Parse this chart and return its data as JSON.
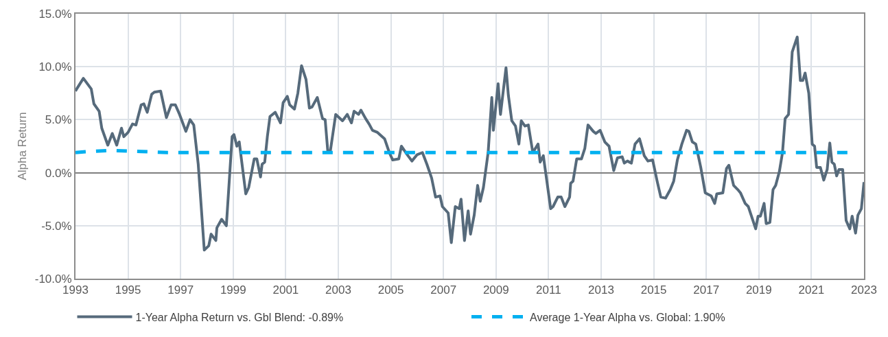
{
  "chart_data": {
    "type": "line",
    "ylabel": "Alpha Return",
    "xlim": [
      1993,
      2023
    ],
    "xticks": [
      1993,
      1995,
      1997,
      1999,
      2001,
      2003,
      2005,
      2007,
      2009,
      2011,
      2013,
      2015,
      2017,
      2019,
      2021,
      2023
    ],
    "ylim": [
      -10,
      15
    ],
    "yticks": [
      {
        "value": -10,
        "label": "-10.0%"
      },
      {
        "value": -5,
        "label": "-5.0%"
      },
      {
        "value": 0,
        "label": "0.0%"
      },
      {
        "value": 5,
        "label": "5.0%"
      },
      {
        "value": 10,
        "label": "10.0%"
      },
      {
        "value": 15,
        "label": "15.0%"
      }
    ],
    "grid": true,
    "legend": "bottom",
    "marker": "none",
    "series": [
      {
        "name": "1-Year Alpha Return vs. Gbl Blend: -0.89%",
        "color": "#566a7b",
        "line_style": "solid",
        "x": [
          1993.0,
          1993.07,
          1993.3,
          1993.6,
          1993.7,
          1993.9,
          1994.0,
          1994.23,
          1994.4,
          1994.57,
          1994.75,
          1994.84,
          1995.0,
          1995.17,
          1995.3,
          1995.5,
          1995.6,
          1995.73,
          1995.9,
          1996.0,
          1996.24,
          1996.46,
          1996.64,
          1996.8,
          1996.96,
          1997.2,
          1997.36,
          1997.5,
          1997.67,
          1997.9,
          1998.07,
          1998.16,
          1998.34,
          1998.38,
          1998.56,
          1998.74,
          1998.96,
          1999.03,
          1999.14,
          1999.23,
          1999.48,
          1999.59,
          1999.8,
          1999.9,
          2000.04,
          2000.1,
          2000.2,
          2000.3,
          2000.4,
          2000.6,
          2000.8,
          2000.9,
          2001.06,
          2001.15,
          2001.33,
          2001.46,
          2001.6,
          2001.77,
          2001.9,
          2002.0,
          2002.2,
          2002.27,
          2002.4,
          2002.5,
          2002.6,
          2002.7,
          2002.9,
          2003.16,
          2003.34,
          2003.5,
          2003.6,
          2003.77,
          2003.86,
          2004.04,
          2004.17,
          2004.3,
          2004.49,
          2004.76,
          2004.94,
          2005.07,
          2005.3,
          2005.4,
          2005.65,
          2005.8,
          2006.0,
          2006.2,
          2006.37,
          2006.55,
          2006.7,
          2006.87,
          2006.96,
          2007.18,
          2007.3,
          2007.45,
          2007.6,
          2007.67,
          2007.8,
          2007.94,
          2008.03,
          2008.17,
          2008.3,
          2008.4,
          2008.52,
          2008.7,
          2008.84,
          2008.9,
          2009.08,
          2009.17,
          2009.38,
          2009.47,
          2009.6,
          2009.74,
          2009.87,
          2009.96,
          2010.1,
          2010.23,
          2010.4,
          2010.6,
          2010.68,
          2010.8,
          2011.08,
          2011.17,
          2011.35,
          2011.48,
          2011.62,
          2011.8,
          2011.84,
          2011.93,
          2012.07,
          2012.25,
          2012.38,
          2012.5,
          2012.7,
          2012.8,
          2012.96,
          2013.14,
          2013.3,
          2013.48,
          2013.62,
          2013.8,
          2013.88,
          2014.0,
          2014.15,
          2014.29,
          2014.46,
          2014.64,
          2014.78,
          2014.96,
          2015.13,
          2015.27,
          2015.45,
          2015.63,
          2015.76,
          2015.9,
          2016.07,
          2016.25,
          2016.34,
          2016.47,
          2016.6,
          2016.79,
          2016.96,
          2017.19,
          2017.32,
          2017.4,
          2017.63,
          2017.77,
          2017.86,
          2018.04,
          2018.2,
          2018.3,
          2018.48,
          2018.6,
          2018.88,
          2018.97,
          2019.06,
          2019.2,
          2019.28,
          2019.42,
          2019.54,
          2019.64,
          2019.78,
          2019.9,
          2020.0,
          2020.13,
          2020.27,
          2020.46,
          2020.58,
          2020.67,
          2020.76,
          2020.9,
          2021.03,
          2021.12,
          2021.2,
          2021.34,
          2021.47,
          2021.6,
          2021.7,
          2021.78,
          2021.87,
          2021.96,
          2022.05,
          2022.19,
          2022.32,
          2022.46,
          2022.55,
          2022.68,
          2022.77,
          2022.9,
          2023.0
        ],
        "values": [
          7.7,
          8.0,
          8.9,
          7.9,
          6.5,
          5.8,
          4.2,
          2.6,
          3.7,
          2.6,
          4.2,
          3.4,
          3.8,
          4.6,
          4.5,
          6.4,
          6.5,
          5.7,
          7.4,
          7.6,
          7.7,
          5.2,
          6.4,
          6.4,
          5.5,
          3.9,
          5.0,
          4.5,
          0.8,
          -7.3,
          -6.9,
          -5.8,
          -6.4,
          -5.2,
          -4.4,
          -5.0,
          3.4,
          3.6,
          2.5,
          2.9,
          -2.0,
          -1.4,
          1.3,
          1.3,
          -0.4,
          0.8,
          1.0,
          3.4,
          5.3,
          5.7,
          4.7,
          6.6,
          7.2,
          6.4,
          6.0,
          7.5,
          10.1,
          8.8,
          6.1,
          6.2,
          7.1,
          6.4,
          5.1,
          5.0,
          2.0,
          2.1,
          5.5,
          4.9,
          5.5,
          4.7,
          5.8,
          5.5,
          5.9,
          5.1,
          4.6,
          4.0,
          3.8,
          3.2,
          1.9,
          1.2,
          1.3,
          2.5,
          1.6,
          1.1,
          1.7,
          1.9,
          0.8,
          -0.5,
          -2.3,
          -2.2,
          -3.2,
          -3.8,
          -6.6,
          -3.2,
          -3.4,
          -2.5,
          -6.4,
          -3.6,
          -5.8,
          -4.0,
          -1.2,
          -2.7,
          -1.4,
          1.9,
          7.1,
          4.0,
          8.4,
          5.5,
          9.9,
          7.3,
          4.9,
          4.4,
          2.7,
          4.9,
          4.4,
          4.5,
          1.9,
          2.7,
          1.0,
          1.6,
          -3.4,
          -3.2,
          -2.3,
          -2.3,
          -3.2,
          -2.3,
          -1.0,
          -0.8,
          1.3,
          1.3,
          2.3,
          4.5,
          3.9,
          3.7,
          4.0,
          2.9,
          2.5,
          0.2,
          1.4,
          1.5,
          0.9,
          1.1,
          0.9,
          2.7,
          3.2,
          1.6,
          1.1,
          1.2,
          -0.8,
          -2.3,
          -2.4,
          -1.6,
          -0.8,
          1.2,
          2.7,
          4.0,
          3.9,
          2.9,
          2.7,
          0.5,
          -1.9,
          -2.2,
          -2.9,
          -2.0,
          -1.9,
          0.4,
          0.7,
          -1.2,
          -1.6,
          -1.9,
          -2.9,
          -3.2,
          -5.3,
          -4.1,
          -4.1,
          -2.9,
          -4.8,
          -4.7,
          -1.6,
          -1.2,
          0.1,
          1.9,
          5.1,
          5.5,
          11.4,
          12.8,
          8.7,
          8.7,
          9.4,
          7.5,
          2.7,
          2.5,
          0.5,
          0.5,
          -0.7,
          0.3,
          2.8,
          1.0,
          0.8,
          -0.3,
          0.3,
          0.3,
          -4.5,
          -5.3,
          -4.1,
          -5.7,
          -4.0,
          -3.4,
          -0.89
        ]
      },
      {
        "name": "Average 1-Year Alpha vs. Global: 1.90%",
        "color": "#00b0f0",
        "line_style": "dashed",
        "x": [
          1993.0,
          1993.5,
          1994.3,
          1995.5,
          1996.5,
          2022.46
        ],
        "values": [
          1.9,
          2.0,
          2.1,
          2.0,
          1.9,
          1.9
        ]
      }
    ]
  }
}
